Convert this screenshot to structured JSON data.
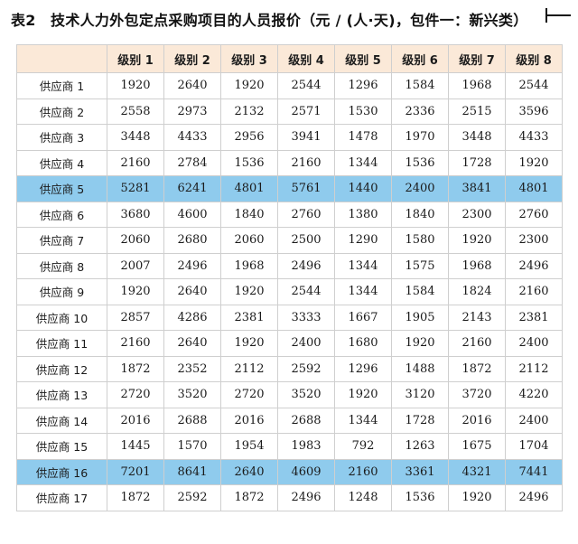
{
  "title": "表2　技术人力外包定点采购项目的人员报价（元 / (人·天)，包件一：新兴类）",
  "table": {
    "corner_label": "",
    "columns": [
      "级别 1",
      "级别 2",
      "级别 3",
      "级别 4",
      "级别 5",
      "级别 6",
      "级别 7",
      "级别 8"
    ],
    "rows": [
      {
        "supplier": "供应商 1",
        "values": [
          "1920",
          "2640",
          "1920",
          "2544",
          "1296",
          "1584",
          "1968",
          "2544"
        ],
        "highlight": false
      },
      {
        "supplier": "供应商 2",
        "values": [
          "2558",
          "2973",
          "2132",
          "2571",
          "1530",
          "2336",
          "2515",
          "3596"
        ],
        "highlight": false
      },
      {
        "supplier": "供应商 3",
        "values": [
          "3448",
          "4433",
          "2956",
          "3941",
          "1478",
          "1970",
          "3448",
          "4433"
        ],
        "highlight": false
      },
      {
        "supplier": "供应商 4",
        "values": [
          "2160",
          "2784",
          "1536",
          "2160",
          "1344",
          "1536",
          "1728",
          "1920"
        ],
        "highlight": false
      },
      {
        "supplier": "供应商 5",
        "values": [
          "5281",
          "6241",
          "4801",
          "5761",
          "1440",
          "2400",
          "3841",
          "4801"
        ],
        "highlight": true
      },
      {
        "supplier": "供应商 6",
        "values": [
          "3680",
          "4600",
          "1840",
          "2760",
          "1380",
          "1840",
          "2300",
          "2760"
        ],
        "highlight": false
      },
      {
        "supplier": "供应商 7",
        "values": [
          "2060",
          "2680",
          "2060",
          "2500",
          "1290",
          "1580",
          "1920",
          "2300"
        ],
        "highlight": false
      },
      {
        "supplier": "供应商 8",
        "values": [
          "2007",
          "2496",
          "1968",
          "2496",
          "1344",
          "1575",
          "1968",
          "2496"
        ],
        "highlight": false
      },
      {
        "supplier": "供应商 9",
        "values": [
          "1920",
          "2640",
          "1920",
          "2544",
          "1344",
          "1584",
          "1824",
          "2160"
        ],
        "highlight": false
      },
      {
        "supplier": "供应商 10",
        "values": [
          "2857",
          "4286",
          "2381",
          "3333",
          "1667",
          "1905",
          "2143",
          "2381"
        ],
        "highlight": false
      },
      {
        "supplier": "供应商 11",
        "values": [
          "2160",
          "2640",
          "1920",
          "2400",
          "1680",
          "1920",
          "2160",
          "2400"
        ],
        "highlight": false
      },
      {
        "supplier": "供应商 12",
        "values": [
          "1872",
          "2352",
          "2112",
          "2592",
          "1296",
          "1488",
          "1872",
          "2112"
        ],
        "highlight": false
      },
      {
        "supplier": "供应商 13",
        "values": [
          "2720",
          "3520",
          "2720",
          "3520",
          "1920",
          "3120",
          "3720",
          "4220"
        ],
        "highlight": false
      },
      {
        "supplier": "供应商 14",
        "values": [
          "2016",
          "2688",
          "2016",
          "2688",
          "1344",
          "1728",
          "2016",
          "2400"
        ],
        "highlight": false
      },
      {
        "supplier": "供应商 15",
        "values": [
          "1445",
          "1570",
          "1954",
          "1983",
          "792",
          "1263",
          "1675",
          "1704"
        ],
        "highlight": false
      },
      {
        "supplier": "供应商 16",
        "values": [
          "7201",
          "8641",
          "2640",
          "4609",
          "2160",
          "3361",
          "4321",
          "7441"
        ],
        "highlight": true
      },
      {
        "supplier": "供应商 17",
        "values": [
          "1872",
          "2592",
          "1872",
          "2496",
          "1248",
          "1536",
          "1920",
          "2496"
        ],
        "highlight": false
      }
    ]
  },
  "colors": {
    "header_bg": "#fbe9d8",
    "highlight_bg": "#8fcbed",
    "border": "#cfcfcf"
  }
}
